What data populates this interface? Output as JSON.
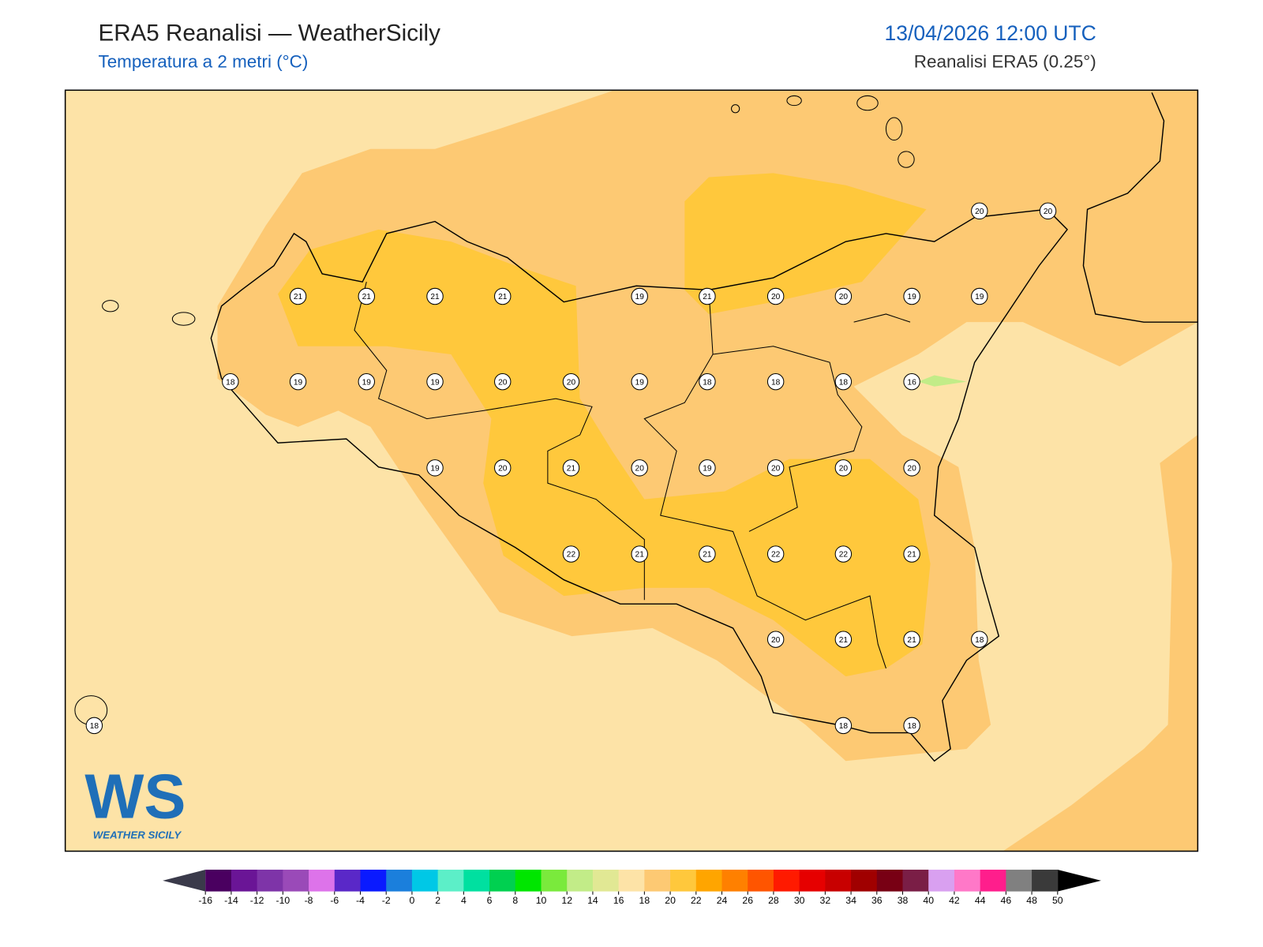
{
  "header": {
    "title": "ERA5 Reanalisi — WeatherSicily",
    "subtitle": "Temperatura a 2 metri (°C)",
    "datetime": "13/04/2026 12:00 UTC",
    "source": "Reanalisi ERA5 (0.25°)"
  },
  "map": {
    "stations": [
      20,
      20,
      21,
      21,
      21,
      21,
      19,
      21,
      20,
      20,
      19,
      19,
      18,
      19,
      19,
      19,
      20,
      20,
      19,
      18,
      18,
      18,
      16,
      19,
      20,
      21,
      20,
      19,
      20,
      20,
      20,
      22,
      21,
      21,
      22,
      22,
      21,
      20,
      21,
      21,
      18,
      18,
      18,
      18
    ]
  },
  "logo": {
    "text": "WS",
    "caption": "WEATHER SICILY"
  },
  "colorbar": {
    "ticks": [
      -16,
      -14,
      -12,
      -10,
      -8,
      -6,
      -4,
      -2,
      0,
      2,
      4,
      6,
      8,
      10,
      12,
      14,
      16,
      18,
      20,
      22,
      24,
      26,
      28,
      30,
      32,
      34,
      36,
      38,
      40,
      42,
      44,
      46,
      48,
      50
    ],
    "colors": [
      "#4a0060",
      "#6a1596",
      "#7e34a8",
      "#9a4ab8",
      "#dd73ea",
      "#5a28c8",
      "#0a1aff",
      "#1b7fdc",
      "#00c8e6",
      "#5cefc8",
      "#00e0a0",
      "#00d050",
      "#00e600",
      "#7aea3c",
      "#c2ec88",
      "#e1e894",
      "#fde3a7",
      "#fdc973",
      "#ffc83c",
      "#ffa500",
      "#ff8000",
      "#ff5500",
      "#ff1a00",
      "#e60000",
      "#c80000",
      "#a00000",
      "#780014",
      "#7a1e46",
      "#d9a0f0",
      "#ff78c8",
      "#ff1e8c",
      "#808080",
      "#3a3a3a"
    ],
    "under_color": "#3a3a4a",
    "over_color": "#000000"
  }
}
